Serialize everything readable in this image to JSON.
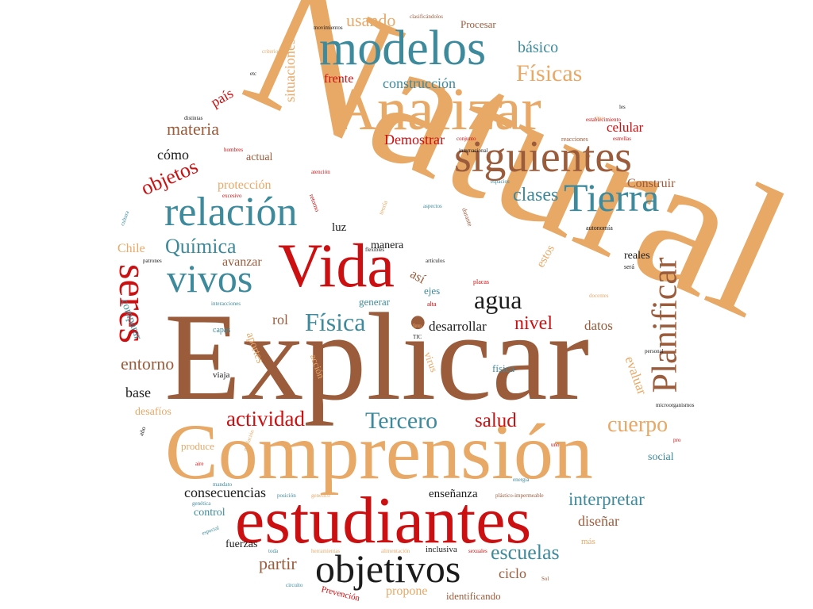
{
  "palette": {
    "orange": "#e8a866",
    "brown": "#9b5c3c",
    "red": "#cc0f10",
    "teal": "#3d8a9c",
    "dark": "#1c1c1c"
  },
  "words": {
    "natural": "Natural",
    "explicar": "Explicar",
    "comprension": "Comprensión",
    "estudiantes": "estudiantes",
    "analizar": "Analizar",
    "modelos": "modelos",
    "vida": "Vida",
    "siguientes": "siguientes",
    "relacion": "relación",
    "tierra": "Tierra",
    "vivos": "vivos",
    "seres": "seres",
    "planificar": "Planificar",
    "objetivos": "objetivos",
    "fisicas": "Físicas",
    "quimica": "Química",
    "agua": "agua",
    "fisica": "Física",
    "actividad": "actividad",
    "tercero": "Tercero",
    "cuerpo": "cuerpo",
    "salud": "salud",
    "escuelas": "escuelas",
    "objetos": "objetos",
    "materia": "materia",
    "clases": "clases",
    "nivel": "nivel",
    "entorno": "entorno",
    "interpretar": "interpretar",
    "consecuencias": "consecuencias",
    "usando": "usando",
    "construccion": "construcción",
    "basico": "básico",
    "situaciones": "situaciones",
    "pais": "país",
    "frente": "frente",
    "demostrar": "Demostrar",
    "celular": "celular",
    "como": "cómo",
    "construir": "Construir",
    "proteccion": "protección",
    "actual": "actual",
    "chile": "Chile",
    "luz": "luz",
    "manera": "manera",
    "reales": "reales",
    "avanzar": "avanzar",
    "rol": "rol",
    "desarrollar": "desarrollar",
    "datos": "datos",
    "base": "base",
    "evaluar": "evaluar",
    "partir": "partir",
    "ciclo": "ciclo",
    "disenar": "diseñar",
    "ensenanza": "enseñanza",
    "fuerzas": "fuerzas",
    "propone": "propone",
    "identificando": "identificando",
    "control": "control",
    "comparar": "comparar",
    "aportes": "aportes",
    "desafios": "desafíos",
    "produce": "produce",
    "social": "social",
    "procesar": "Procesar",
    "estos": "estos",
    "asi": "así",
    "generar": "generar",
    "ejes": "ejes",
    "fisica_l": "física",
    "viaja": "viaja",
    "virus": "virus",
    "accion": "acción",
    "inclusiva": "inclusiva",
    "mas": "más",
    "capas": "capas",
    "movimientos": "movimientos",
    "clasificandolos": "clasificándolos",
    "criterios": "criterios",
    "internacional": "internacional",
    "reacciones": "reacciones",
    "conjunto": "conjunto",
    "establecimiento": "establecimiento",
    "estrellas": "estrellas",
    "hombres": "hombres",
    "atencion": "atención",
    "flexibles": "flexibles",
    "teoria": "teoría",
    "aspectos": "aspectos",
    "durante": "durante",
    "autonomia": "autonomía",
    "sera": "será",
    "articulos": "artículos",
    "placas": "placas",
    "alta": "alta",
    "interacciones": "interacciones",
    "retorno": "retorno",
    "excesivo": "excesivo",
    "espacios": "espacios",
    "patrones": "patrones",
    "personal": "personal",
    "microorganismos": "microorganismos",
    "docentes": "docentes",
    "mandato": "mandato",
    "posicion": "posición",
    "genetico": "genético",
    "plastico": "plástico-impermeable",
    "genetica": "genética",
    "especial": "especial",
    "toda": "toda",
    "herramientas": "herramientas",
    "alimentacion": "alimentación",
    "sexuales": "sexuales",
    "sol": "Sol",
    "circuito": "circuito",
    "prevencion": "Prevención",
    "aire": "aire",
    "ano": "año",
    "tic": "TIC",
    "feto": "feto",
    "etc": "etc",
    "distintas": "distintas",
    "tipo": "tipo",
    "les": "les",
    "cultura": "cultura",
    "poblacion": "población",
    "pro": "pro",
    "energia": "energía",
    "uno": "uno"
  }
}
